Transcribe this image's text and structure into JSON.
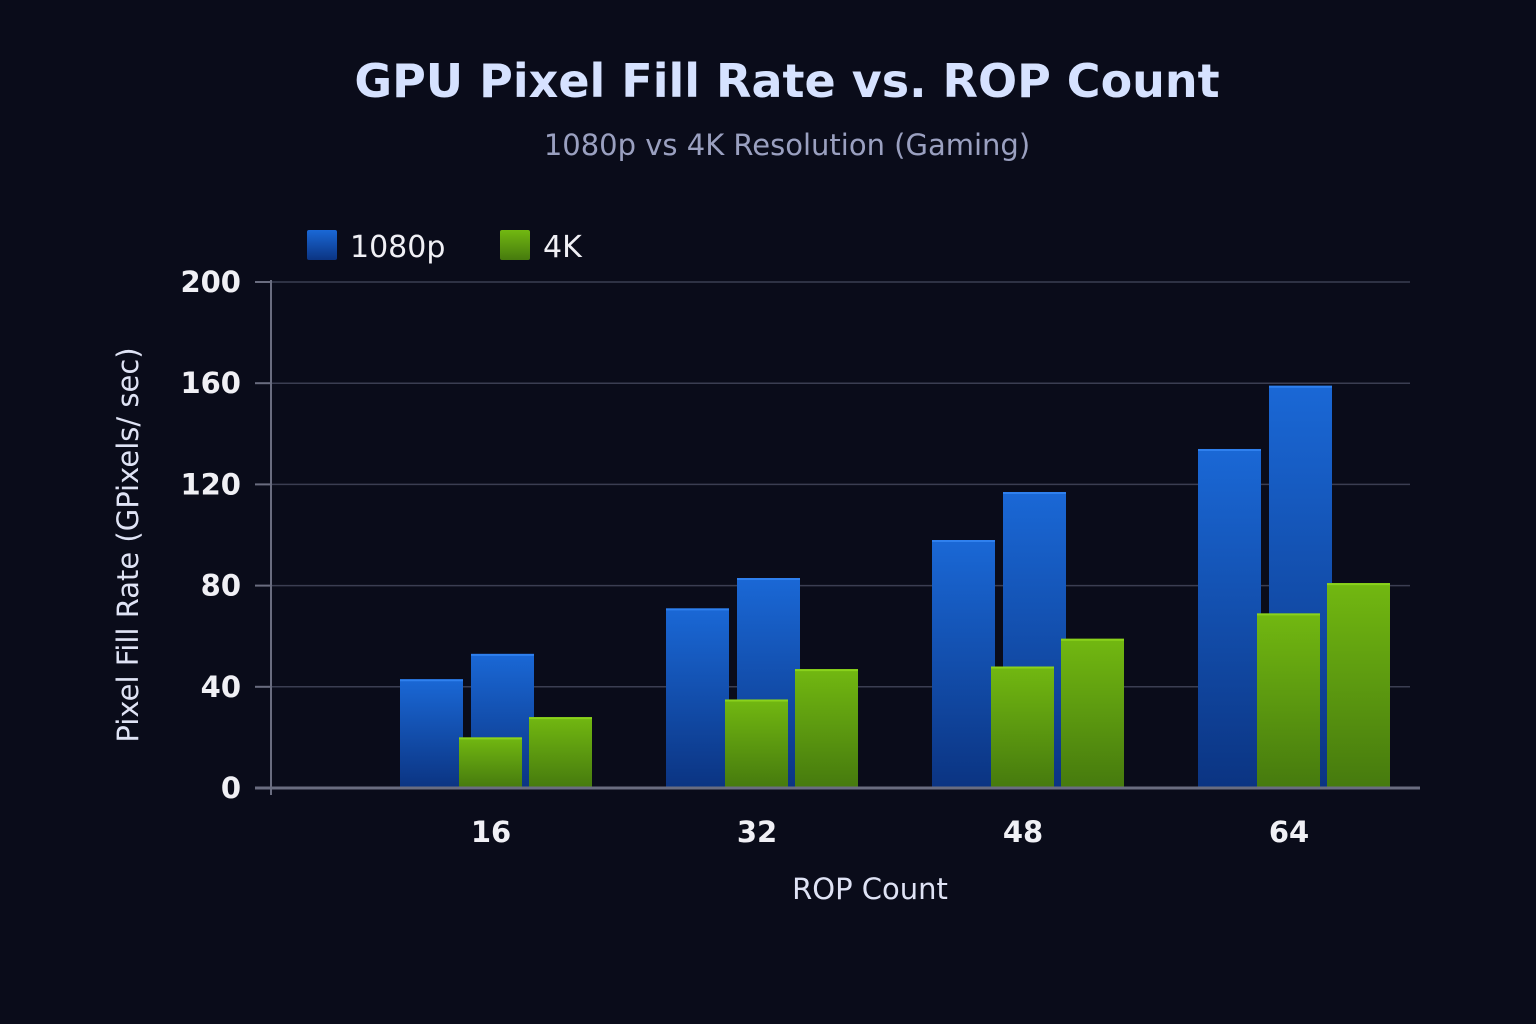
{
  "chart_data": {
    "type": "bar",
    "title": "GPU Pixel Fill Rate vs. ROP Count",
    "subtitle": "1080p vs 4K Resolution (Gaming)",
    "xlabel": "ROP Count",
    "ylabel": "Pixel Fill Rate (GPixels/ sec)",
    "categories": [
      "16",
      "32",
      "48",
      "64"
    ],
    "ylim": [
      0,
      200
    ],
    "yticks": [
      "0",
      "40",
      "80",
      "120",
      "160",
      "200"
    ],
    "grid": true,
    "legend_position": "top-left",
    "series": [
      {
        "name": "1080p",
        "color": "#1a66d0",
        "values": [
          [
            43,
            53
          ],
          [
            71,
            83
          ],
          [
            98,
            117
          ],
          [
            134,
            159
          ]
        ]
      },
      {
        "name": "4K",
        "color": "#6eb510",
        "values": [
          [
            20,
            28
          ],
          [
            35,
            47
          ],
          [
            48,
            59
          ],
          [
            69,
            81
          ]
        ]
      }
    ]
  }
}
